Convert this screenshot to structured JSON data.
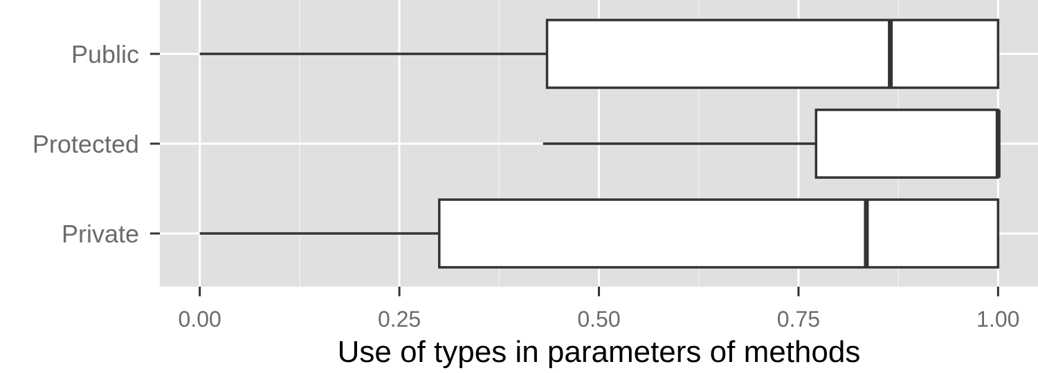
{
  "chart_data": {
    "type": "boxplot",
    "orientation": "horizontal",
    "title": "",
    "xlabel": "Use of types in parameters of methods",
    "ylabel": "",
    "xlim": [
      -0.05,
      1.05
    ],
    "x_ticks": [
      0.0,
      0.25,
      0.5,
      0.75,
      1.0
    ],
    "x_tick_labels": [
      "0.00",
      "0.25",
      "0.50",
      "0.75",
      "1.00"
    ],
    "categories": [
      "Public",
      "Protected",
      "Private"
    ],
    "boxes": [
      {
        "category": "Public",
        "whisker_low": 0.0,
        "q1": 0.435,
        "median": 0.865,
        "q3": 1.0,
        "whisker_high": 1.0
      },
      {
        "category": "Protected",
        "whisker_low": 0.43,
        "q1": 0.772,
        "median": 1.0,
        "q3": 1.0,
        "whisker_high": 1.0
      },
      {
        "category": "Private",
        "whisker_low": 0.0,
        "q1": 0.3,
        "median": 0.835,
        "q3": 1.0,
        "whisker_high": 1.0
      }
    ],
    "grid": true,
    "legend": "none",
    "colors": {
      "panel_background": "#e0e0e0",
      "grid_major": "#ffffff",
      "grid_minor": "#f0f0f0",
      "box_fill": "#ffffff",
      "box_stroke": "#333333",
      "tick_text": "#6b6b6b",
      "title_text": "#000000"
    }
  }
}
